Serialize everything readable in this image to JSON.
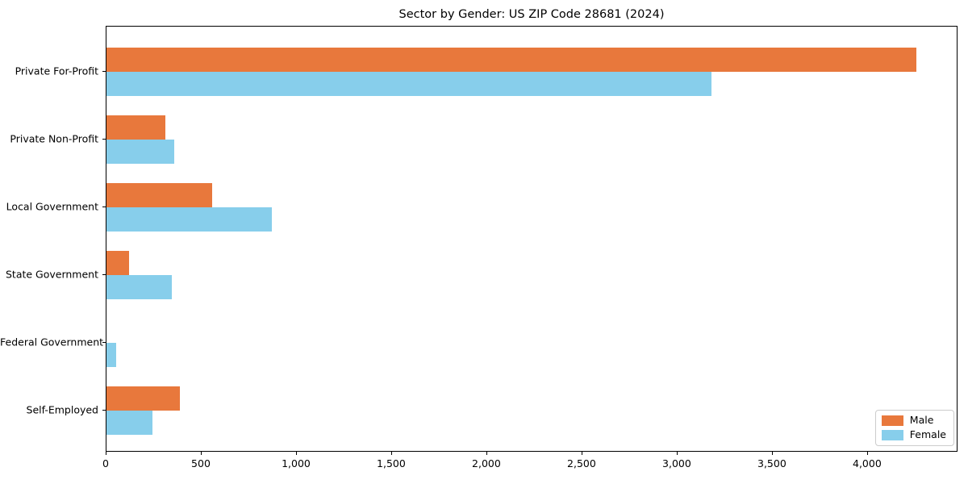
{
  "figure": {
    "background": "#ffffff",
    "spine_color": "#000000"
  },
  "chart_data": {
    "type": "bar",
    "orientation": "horizontal",
    "title": "Sector by Gender: US ZIP Code 28681 (2024)",
    "xlabel": "",
    "ylabel": "",
    "categories": [
      "Private For-Profit",
      "Private Non-Profit",
      "Local Government",
      "State Government",
      "Federal Government",
      "Self-Employed"
    ],
    "series": [
      {
        "name": "Male",
        "color": "#E8783C",
        "values": [
          4255,
          310,
          555,
          120,
          0,
          385
        ]
      },
      {
        "name": "Female",
        "color": "#87CEEB",
        "values": [
          3180,
          355,
          870,
          345,
          50,
          240
        ]
      }
    ],
    "xlim": [
      0,
      4475
    ],
    "xticks": [
      0,
      500,
      1000,
      1500,
      2000,
      2500,
      3000,
      3500,
      4000
    ],
    "xtick_labels": [
      "0",
      "500",
      "1,000",
      "1,500",
      "2,000",
      "2,500",
      "3,000",
      "3,500",
      "4,000"
    ],
    "grid": false,
    "legend": {
      "position": "lower-right",
      "entries": [
        "Male",
        "Female"
      ]
    }
  }
}
